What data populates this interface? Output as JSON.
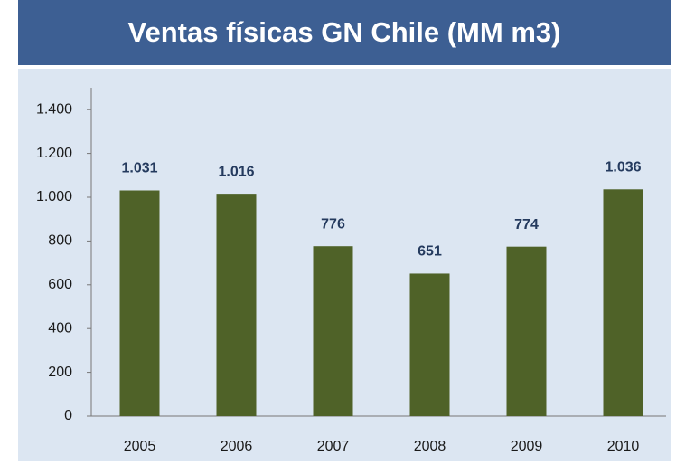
{
  "chart_data": {
    "type": "bar",
    "title": "Ventas físicas GN Chile (MM m3)",
    "categories": [
      "2005",
      "2006",
      "2007",
      "2008",
      "2009",
      "2010"
    ],
    "values": [
      1031,
      1016,
      776,
      651,
      774,
      1036
    ],
    "value_labels": [
      "1.031",
      "1.016",
      "776",
      "651",
      "774",
      "1.036"
    ],
    "color": "#4f6228",
    "ylim": [
      0,
      1500
    ],
    "yticks": [
      0,
      200,
      400,
      600,
      800,
      {
        "value": 1000,
        "label": "1.000"
      },
      {
        "value": 1200,
        "label": "1.200"
      },
      {
        "value": 1400,
        "label": "1.400"
      }
    ],
    "grid": false
  }
}
